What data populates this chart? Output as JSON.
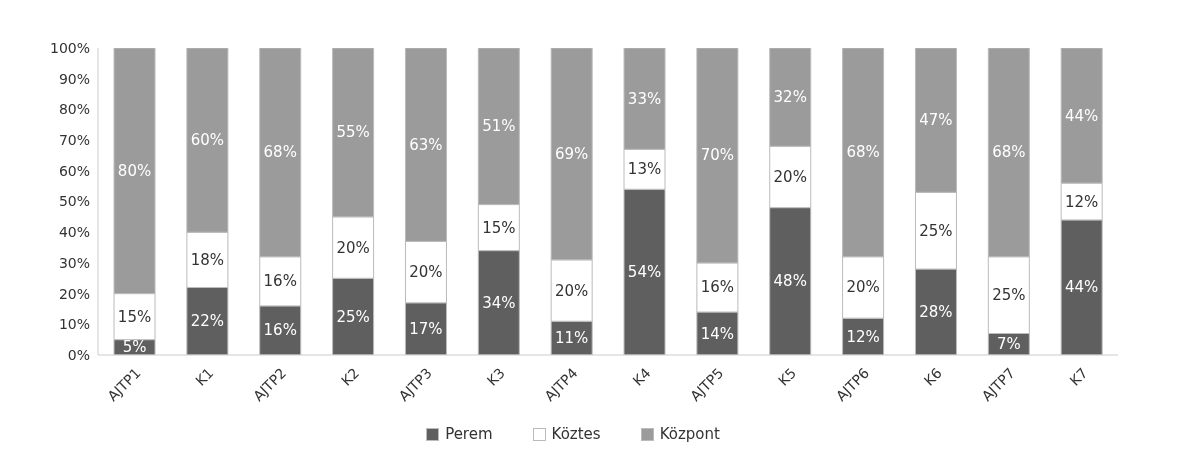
{
  "chart_data": {
    "type": "bar",
    "stacked": true,
    "categories": [
      "AJTP1",
      "K1",
      "AJTP2",
      "K2",
      "AJTP3",
      "K3",
      "AJTP4",
      "K4",
      "AJTP5",
      "K5",
      "AJTP6",
      "K6",
      "AJTP7",
      "K7"
    ],
    "series": [
      {
        "name": "Perem",
        "color": "#5f5f5f",
        "values": [
          5,
          22,
          16,
          25,
          17,
          34,
          11,
          54,
          14,
          48,
          12,
          28,
          7,
          44
        ],
        "value_labels": [
          "5%",
          "22%",
          "16%",
          "25%",
          "17%",
          "34%",
          "11%",
          "54%",
          "14%",
          "48%",
          "12%",
          "28%",
          "7%",
          "44%"
        ]
      },
      {
        "name": "Köztes",
        "color": "#ffffff",
        "values": [
          15,
          18,
          16,
          20,
          20,
          15,
          20,
          13,
          16,
          20,
          20,
          25,
          25,
          12
        ],
        "value_labels": [
          "15%",
          "18%",
          "16%",
          "20%",
          "20%",
          "15%",
          "20%",
          "13%",
          "16%",
          "20%",
          "20%",
          "25%",
          "25%",
          "12%"
        ]
      },
      {
        "name": "Központ",
        "color": "#9b9b9b",
        "values": [
          80,
          60,
          68,
          55,
          63,
          51,
          69,
          33,
          70,
          32,
          68,
          47,
          68,
          44
        ],
        "value_labels": [
          "80%",
          "60%",
          "68%",
          "55%",
          "63%",
          "51%",
          "69%",
          "33%",
          "70%",
          "32%",
          "68%",
          "47%",
          "68%",
          "44%"
        ]
      }
    ],
    "ylim": [
      0,
      100
    ],
    "yticks": [
      {
        "value": 0,
        "label": "0%"
      },
      {
        "value": 10,
        "label": "10%"
      },
      {
        "value": 20,
        "label": "20%"
      },
      {
        "value": 30,
        "label": "30%"
      },
      {
        "value": 40,
        "label": "40%"
      },
      {
        "value": 50,
        "label": "50%"
      },
      {
        "value": 60,
        "label": "60%"
      },
      {
        "value": 70,
        "label": "70%"
      },
      {
        "value": 80,
        "label": "80%"
      },
      {
        "value": 90,
        "label": "90%"
      },
      {
        "value": 100,
        "label": "100%"
      }
    ],
    "grid": false,
    "legend": "bottom"
  }
}
